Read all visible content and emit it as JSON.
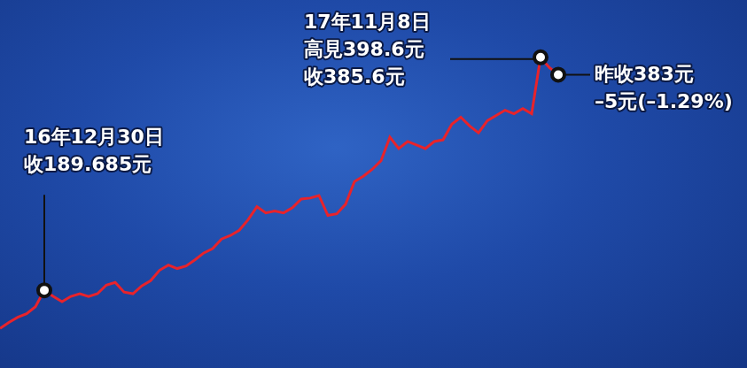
{
  "chart_data": {
    "type": "line",
    "categories": [
      null,
      null,
      null,
      null,
      null,
      null,
      null,
      null,
      null,
      null,
      null,
      null,
      null,
      null,
      null,
      null,
      null,
      null,
      null,
      null,
      null,
      null,
      null,
      null,
      null,
      null,
      null,
      null,
      null,
      null,
      null,
      null,
      null,
      null,
      null,
      null,
      null,
      null,
      null,
      null,
      null,
      null,
      null,
      null,
      null,
      null,
      null,
      null,
      null,
      null,
      null,
      null,
      null,
      null,
      null,
      null,
      null,
      null,
      null,
      null,
      null,
      null,
      null,
      null
    ],
    "values": [
      155.4,
      160.8,
      165.5,
      168.6,
      174.9,
      189.685,
      184.2,
      179.5,
      184.2,
      186.6,
      184.2,
      186.6,
      194.4,
      196.7,
      188.1,
      186.6,
      193.6,
      198.3,
      207.6,
      212.3,
      209.2,
      211.5,
      217.0,
      223.2,
      227.1,
      235.7,
      238.8,
      243.5,
      252.9,
      264.6,
      259.1,
      260.7,
      259.1,
      263.8,
      271.6,
      272.4,
      274.7,
      256.8,
      258.3,
      266.9,
      287.2,
      291.9,
      298.1,
      305.9,
      327.0,
      316.8,
      323.1,
      320.0,
      316.8,
      323.1,
      324.6,
      338.7,
      344.9,
      337.1,
      330.9,
      341.8,
      346.5,
      351.2,
      348.0,
      352.7,
      348.0,
      398.6,
      389.4,
      383
    ],
    "color": "#e8232b",
    "ylim": [
      120,
      450
    ],
    "grid": false,
    "tick_labels": false,
    "annotations": [
      {
        "index": 5,
        "value": 189.685,
        "text": [
          "16年12月30日",
          "收189.685元"
        ]
      },
      {
        "index": 61,
        "value": 398.6,
        "text": [
          "17年11月8日",
          "高見398.6元",
          "收385.6元"
        ]
      },
      {
        "index": 63,
        "value": 383,
        "text": [
          "昨收383元",
          "–5元(–1.29%)"
        ]
      }
    ]
  }
}
